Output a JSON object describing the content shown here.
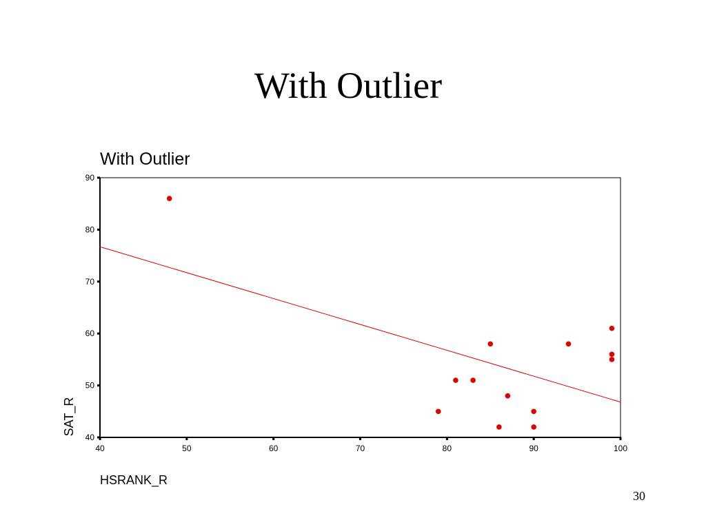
{
  "slide_title": "With Outlier",
  "page_number": "30",
  "chart_data": {
    "type": "scatter",
    "title": "With Outlier",
    "x_label": "HSRANK_R",
    "y_label": "SAT_R",
    "xlim": [
      40,
      100
    ],
    "ylim": [
      40,
      90
    ],
    "xticks": [
      40,
      50,
      60,
      70,
      80,
      90,
      100
    ],
    "yticks": [
      40,
      50,
      60,
      70,
      80,
      90
    ],
    "grid": false,
    "series": [
      {
        "color": "#e00000",
        "x": [
          48,
          79,
          81,
          83,
          85,
          86,
          87,
          90,
          90,
          94,
          99,
          99,
          99
        ],
        "values": [
          86,
          45,
          51,
          51,
          58,
          42,
          48,
          45,
          42,
          58,
          61,
          56,
          55
        ]
      }
    ],
    "fit_line": {
      "color": "#e00000",
      "x": [
        40,
        100
      ],
      "y": [
        76.7,
        46.8
      ]
    }
  }
}
